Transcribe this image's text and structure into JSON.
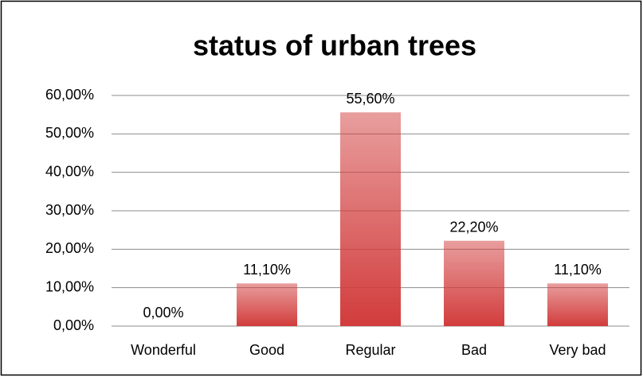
{
  "chart_data": {
    "type": "bar",
    "title": "status of urban trees",
    "categories": [
      "Wonderful",
      "Good",
      "Regular",
      "Bad",
      "Very bad"
    ],
    "values": [
      0,
      11.1,
      55.6,
      22.2,
      11.1
    ],
    "value_labels": [
      "0,00%",
      "11,10%",
      "55,60%",
      "22,20%",
      "11,10%"
    ],
    "color": "#d23c3c",
    "ylim": [
      0,
      60
    ],
    "yticks": [
      {
        "value": 0,
        "label": "0,00%"
      },
      {
        "value": 10,
        "label": "10,00%"
      },
      {
        "value": 20,
        "label": "20,00%"
      },
      {
        "value": 30,
        "label": "30,00%"
      },
      {
        "value": 40,
        "label": "40,00%"
      },
      {
        "value": 50,
        "label": "50,00%"
      },
      {
        "value": 60,
        "label": "60,00%"
      }
    ],
    "grid": true
  }
}
